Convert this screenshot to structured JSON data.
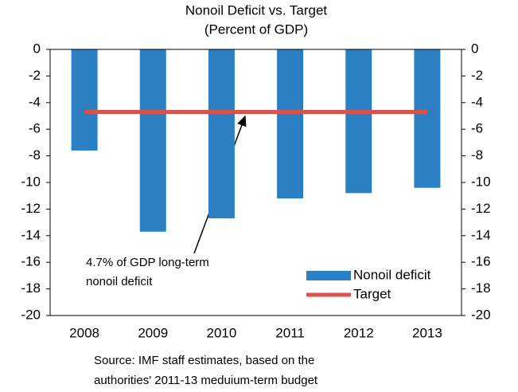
{
  "chart_data": {
    "type": "bar",
    "title": [
      "Nonoil Deficit vs. Target",
      "(Percent of GDP)"
    ],
    "categories": [
      "2008",
      "2009",
      "2010",
      "2011",
      "2012",
      "2013"
    ],
    "series": [
      {
        "name": "Nonoil deficit",
        "color": "#2b80c3",
        "type": "bar",
        "values": [
          -7.6,
          -13.7,
          -12.7,
          -11.2,
          -10.8,
          -10.4
        ]
      },
      {
        "name": "Target",
        "color": "#d9534c",
        "type": "line",
        "values": [
          -4.7,
          -4.7,
          -4.7,
          -4.7,
          -4.7,
          -4.7
        ]
      }
    ],
    "ylim": [
      -20,
      0
    ],
    "yticks": [
      0,
      -2,
      -4,
      -6,
      -8,
      -10,
      -12,
      -14,
      -16,
      -18,
      -20
    ],
    "y2lim": [
      -20,
      0
    ],
    "y2ticks": [
      0,
      -2,
      -4,
      -6,
      -8,
      -10,
      -12,
      -14,
      -16,
      -18,
      -20
    ],
    "annotation": [
      "4.7% of GDP long-term",
      "nonoil deficit"
    ],
    "source": [
      "Source: IMF staff estimates, based on the",
      "authorities' 2011-13 meduium-term budget"
    ],
    "legend": "lower right"
  }
}
